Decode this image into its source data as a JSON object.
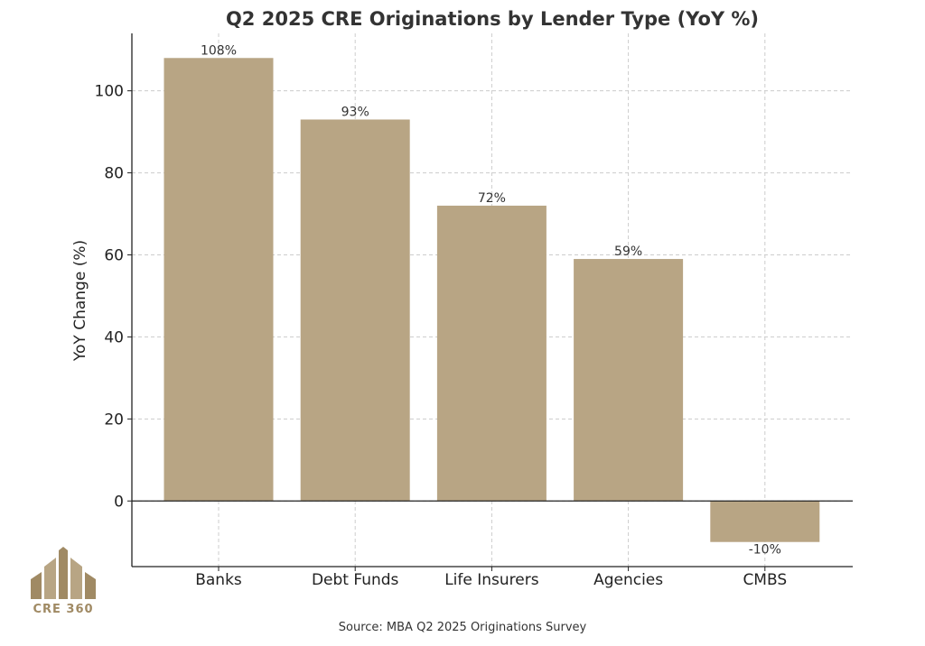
{
  "colors": {
    "bar": "#b8a584",
    "grid": "#cccccc",
    "axis": "#222222",
    "logo": "#a08a64"
  },
  "brand": {
    "logo_text": "CRE 360",
    "logo_icon": "building-columns-icon"
  },
  "source_note": "Source: MBA Q2 2025 Originations Survey",
  "chart_data": {
    "type": "bar",
    "title": "Q2 2025 CRE Originations by Lender Type (YoY %)",
    "xlabel": "",
    "ylabel": "YoY Change (%)",
    "categories": [
      "Banks",
      "Debt Funds",
      "Life Insurers",
      "Agencies",
      "CMBS"
    ],
    "values": [
      108,
      93,
      72,
      59,
      -10
    ],
    "data_labels": [
      "108%",
      "93%",
      "72%",
      "59%",
      "-10%"
    ],
    "ylim": [
      -16,
      114
    ],
    "yticks": [
      0,
      20,
      40,
      60,
      80,
      100
    ],
    "grid": true,
    "legend": "none"
  }
}
